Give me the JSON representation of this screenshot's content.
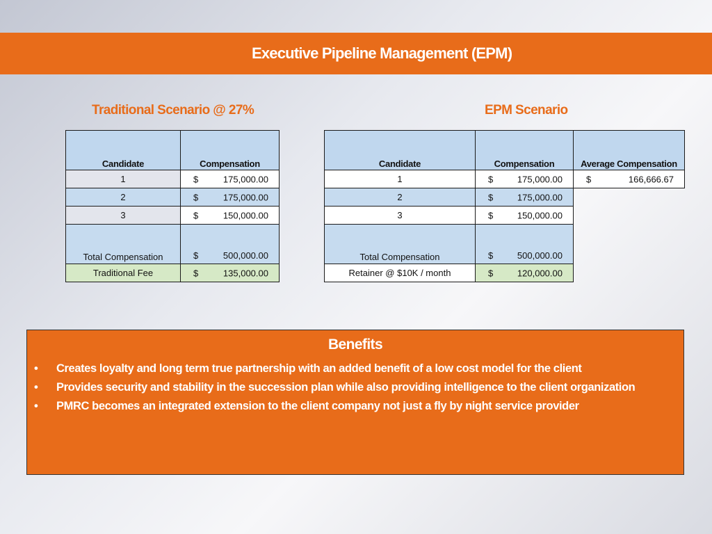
{
  "banner": {
    "title": "Executive Pipeline Management (EPM)"
  },
  "traditional": {
    "heading": "Traditional Scenario @ 27%",
    "headers": [
      "Candidate",
      "Compensation"
    ],
    "rows": [
      {
        "candidate": "1",
        "currency": "$",
        "amount": "175,000.00"
      },
      {
        "candidate": "2",
        "currency": "$",
        "amount": "175,000.00"
      },
      {
        "candidate": "3",
        "currency": "$",
        "amount": "150,000.00"
      }
    ],
    "total": {
      "label": "Total Compensation",
      "currency": "$",
      "amount": "500,000.00"
    },
    "fee": {
      "label": "Traditional Fee",
      "currency": "$",
      "amount": "135,000.00"
    }
  },
  "epm": {
    "heading": "EPM Scenario",
    "headers": [
      "Candidate",
      "Compensation",
      "Average Compensation"
    ],
    "rows": [
      {
        "candidate": "1",
        "currency": "$",
        "amount": "175,000.00"
      },
      {
        "candidate": "2",
        "currency": "$",
        "amount": "175,000.00"
      },
      {
        "candidate": "3",
        "currency": "$",
        "amount": "150,000.00"
      }
    ],
    "average": {
      "currency": "$",
      "amount": "166,666.67"
    },
    "total": {
      "label": "Total Compensation",
      "currency": "$",
      "amount": "500,000.00"
    },
    "fee": {
      "label": "Retainer @ $10K / month",
      "currency": "$",
      "amount": "120,000.00"
    }
  },
  "benefits": {
    "title": "Benefits",
    "bullet_symbol": "•",
    "items": [
      "Creates loyalty and long term true partnership with an added benefit of  a low cost model for the client",
      "Provides security and stability in the succession plan while also providing intelligence to the client organization",
      "PMRC becomes an integrated extension to the client company  not just a fly by night service provider"
    ]
  },
  "colors": {
    "accent": "#e86c1a",
    "header_fill": "#c0d7ee",
    "fee_fill": "#d6e9c6"
  }
}
